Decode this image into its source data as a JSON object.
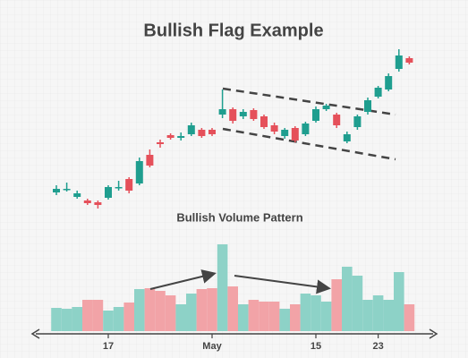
{
  "chart_data": [
    {
      "type": "candlestick",
      "title": "Bullish Flag Example",
      "open": [
        25,
        28,
        20,
        16,
        14,
        19,
        30,
        40,
        35,
        67,
        81,
        89,
        86,
        90,
        95,
        95,
        112,
        118,
        110,
        117,
        110,
        100,
        88,
        97,
        90,
        105,
        118,
        112,
        82,
        98,
        115,
        132,
        140,
        163,
        175
      ],
      "high": [
        33,
        36,
        27,
        18,
        16,
        33,
        38,
        42,
        64,
        73,
        84,
        91,
        92,
        103,
        97,
        97,
        140,
        120,
        118,
        119,
        112,
        103,
        97,
        99,
        104,
        121,
        124,
        114,
        93,
        112,
        131,
        144,
        158,
        185,
        177
      ],
      "low": [
        22,
        26,
        18,
        11,
        7,
        17,
        27,
        24,
        33,
        53,
        75,
        84,
        83,
        88,
        86,
        88,
        108,
        102,
        107,
        105,
        96,
        90,
        85,
        81,
        88,
        103,
        116,
        97,
        80,
        95,
        112,
        130,
        138,
        160,
        168
      ],
      "close": [
        29,
        29,
        24,
        13,
        11,
        31,
        31,
        27,
        60,
        55,
        79,
        86,
        88,
        100,
        88,
        90,
        118,
        105,
        115,
        107,
        98,
        93,
        95,
        83,
        102,
        118,
        122,
        100,
        90,
        110,
        128,
        142,
        155,
        178,
        170
      ],
      "up_color": "#1f9e8f",
      "down_color": "#e5505a",
      "ylim": [
        0,
        200
      ]
    },
    {
      "type": "bar",
      "title": "Bullish Volume Pattern",
      "categories": [
        null,
        null,
        null,
        null,
        null,
        "17",
        null,
        null,
        null,
        null,
        null,
        null,
        null,
        null,
        null,
        "May",
        null,
        null,
        null,
        null,
        null,
        null,
        null,
        null,
        null,
        "15",
        null,
        null,
        null,
        null,
        null,
        "23",
        null,
        null,
        null
      ],
      "values": [
        26,
        25,
        27,
        35,
        35,
        23,
        27,
        32,
        47,
        48,
        45,
        40,
        30,
        42,
        47,
        48,
        97,
        50,
        30,
        35,
        33,
        33,
        25,
        30,
        42,
        40,
        33,
        58,
        72,
        62,
        35,
        40,
        35,
        66,
        30
      ],
      "up_color": "#8dd2c7",
      "down_color": "#f2a3a7",
      "ylim": [
        0,
        100
      ]
    }
  ]
}
